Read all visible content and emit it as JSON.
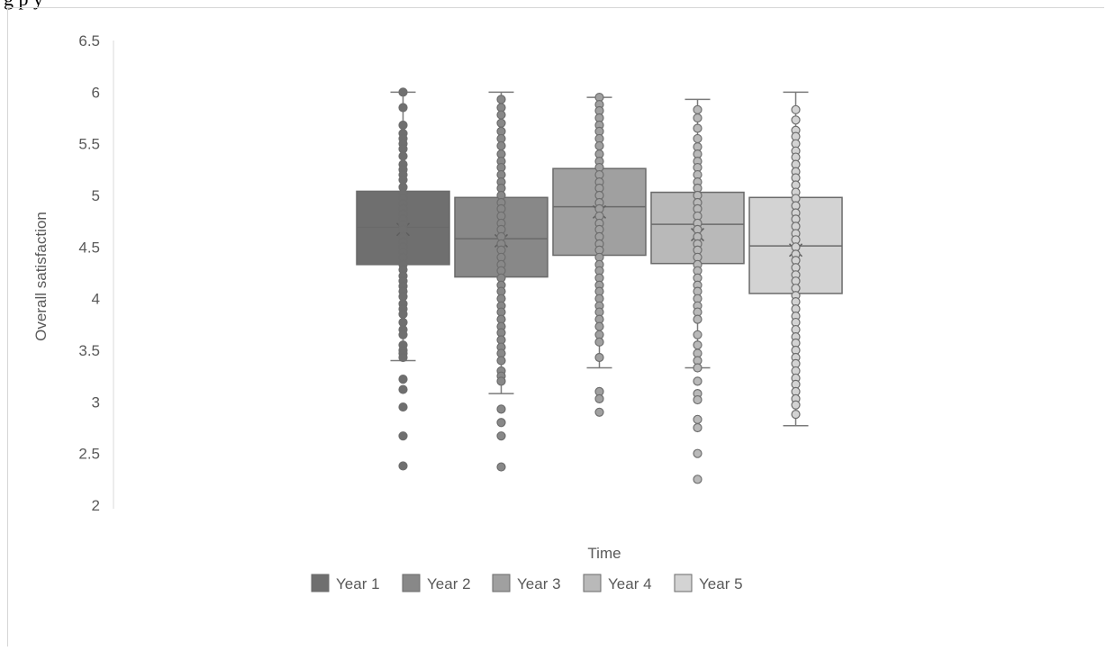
{
  "caption_fragment": "g                                                          p                       y",
  "chart_data": {
    "type": "box",
    "title": "",
    "xlabel": "Time",
    "ylabel": "Overall satisfaction",
    "ylim": [
      2,
      6.5
    ],
    "yticks": [
      "2",
      "2.5",
      "3",
      "3.5",
      "4",
      "4.5",
      "5",
      "5.5",
      "6",
      "6.5"
    ],
    "legend_position": "bottom",
    "grid": false,
    "series": [
      {
        "name": "Year 1",
        "color": "#6f6f6f",
        "whisker_low": 3.4,
        "q1": 4.33,
        "median": 4.69,
        "q3": 5.04,
        "whisker_high": 6.0,
        "mean": 4.67,
        "points": [
          6.0,
          5.85,
          5.68,
          5.6,
          5.55,
          5.5,
          5.45,
          5.38,
          5.3,
          5.25,
          5.2,
          5.15,
          5.08,
          5.02,
          4.97,
          4.92,
          4.87,
          4.82,
          4.77,
          4.72,
          4.67,
          4.6,
          4.55,
          4.5,
          4.45,
          4.4,
          4.33,
          4.28,
          4.22,
          4.17,
          4.12,
          4.07,
          4.02,
          3.95,
          3.9,
          3.85,
          3.77,
          3.7,
          3.65,
          3.55,
          3.5,
          3.47,
          3.43,
          3.22,
          3.12,
          2.95,
          2.67,
          2.38
        ]
      },
      {
        "name": "Year 2",
        "color": "#888888",
        "whisker_low": 3.08,
        "q1": 4.21,
        "median": 4.58,
        "q3": 4.98,
        "whisker_high": 6.0,
        "mean": 4.56,
        "points": [
          5.93,
          5.85,
          5.78,
          5.7,
          5.62,
          5.55,
          5.48,
          5.4,
          5.33,
          5.27,
          5.2,
          5.13,
          5.07,
          5.0,
          4.93,
          4.87,
          4.8,
          4.73,
          4.67,
          4.6,
          4.53,
          4.47,
          4.4,
          4.33,
          4.27,
          4.2,
          4.13,
          4.07,
          4.0,
          3.93,
          3.87,
          3.8,
          3.73,
          3.67,
          3.6,
          3.53,
          3.47,
          3.4,
          3.3,
          3.25,
          3.2,
          2.93,
          2.8,
          2.67,
          2.37
        ]
      },
      {
        "name": "Year 3",
        "color": "#a0a0a0",
        "whisker_low": 3.33,
        "q1": 4.42,
        "median": 4.89,
        "q3": 5.26,
        "whisker_high": 5.95,
        "mean": 4.84,
        "points": [
          5.95,
          5.88,
          5.82,
          5.75,
          5.68,
          5.62,
          5.55,
          5.48,
          5.4,
          5.33,
          5.27,
          5.2,
          5.13,
          5.07,
          5.0,
          4.93,
          4.87,
          4.8,
          4.73,
          4.67,
          4.6,
          4.53,
          4.47,
          4.4,
          4.33,
          4.27,
          4.2,
          4.13,
          4.07,
          4.0,
          3.93,
          3.87,
          3.8,
          3.73,
          3.65,
          3.58,
          3.43,
          3.1,
          3.03,
          2.9
        ]
      },
      {
        "name": "Year 4",
        "color": "#b9b9b9",
        "whisker_low": 3.33,
        "q1": 4.34,
        "median": 4.72,
        "q3": 5.03,
        "whisker_high": 5.93,
        "mean": 4.62,
        "points": [
          5.83,
          5.75,
          5.65,
          5.55,
          5.47,
          5.4,
          5.33,
          5.27,
          5.2,
          5.13,
          5.07,
          5.0,
          4.93,
          4.87,
          4.8,
          4.73,
          4.67,
          4.6,
          4.53,
          4.47,
          4.4,
          4.33,
          4.27,
          4.2,
          4.13,
          4.07,
          4.0,
          3.93,
          3.87,
          3.8,
          3.65,
          3.55,
          3.47,
          3.4,
          3.33,
          3.2,
          3.08,
          3.02,
          2.83,
          2.75,
          2.5,
          2.25
        ]
      },
      {
        "name": "Year 5",
        "color": "#d3d3d3",
        "whisker_low": 2.77,
        "q1": 4.05,
        "median": 4.51,
        "q3": 4.98,
        "whisker_high": 6.0,
        "mean": 4.47,
        "points": [
          5.83,
          5.73,
          5.63,
          5.57,
          5.5,
          5.43,
          5.37,
          5.3,
          5.23,
          5.17,
          5.1,
          5.03,
          4.97,
          4.9,
          4.83,
          4.77,
          4.7,
          4.63,
          4.57,
          4.5,
          4.43,
          4.37,
          4.3,
          4.23,
          4.17,
          4.1,
          4.03,
          3.97,
          3.9,
          3.83,
          3.77,
          3.7,
          3.63,
          3.57,
          3.5,
          3.43,
          3.37,
          3.3,
          3.23,
          3.17,
          3.1,
          3.03,
          2.97,
          2.88
        ]
      }
    ]
  }
}
